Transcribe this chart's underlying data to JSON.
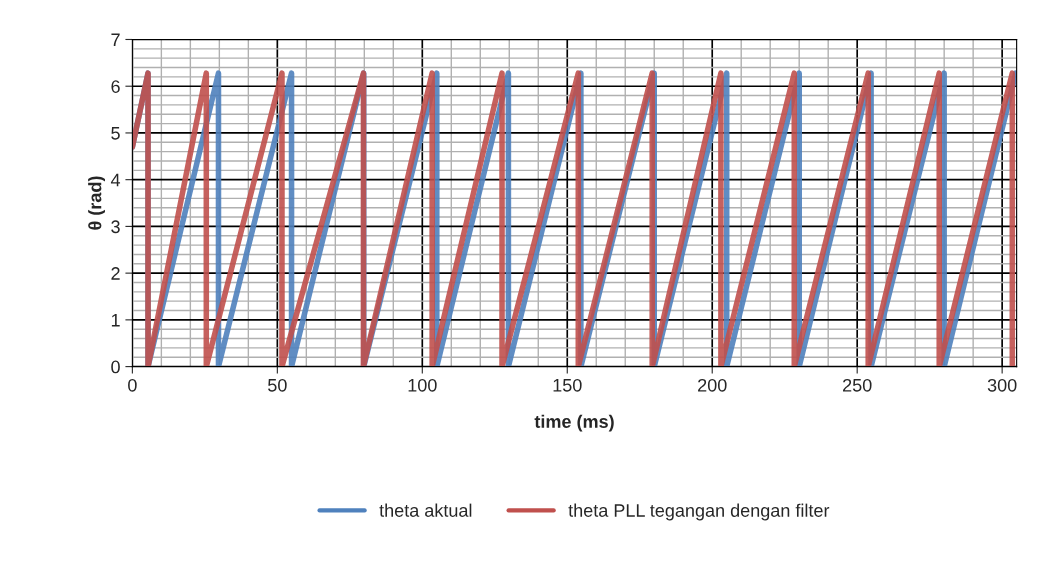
{
  "chart_data": {
    "type": "line",
    "xlabel": "time (ms)",
    "ylabel": "θ (rad)",
    "xlim": [
      0,
      305
    ],
    "xticks": [
      0,
      50,
      100,
      150,
      200,
      250,
      300
    ],
    "ylim": [
      0,
      7
    ],
    "yticks": [
      0,
      1,
      2,
      3,
      4,
      5,
      6,
      7
    ],
    "grid": true,
    "legend": "bottom",
    "marker": "none",
    "line_style": "solid",
    "series": [
      {
        "name": "theta aktual",
        "color": "#4f81bd",
        "x": [
          0,
          5.4,
          5.4,
          29.7,
          29.7,
          54.9,
          54.9,
          79.8,
          79.8,
          105,
          105,
          129.7,
          129.7,
          154.7,
          154.7,
          180,
          180,
          205,
          205,
          230,
          230,
          254.8,
          254.8,
          280,
          280,
          304.7
        ],
        "values": [
          4.7,
          6.28,
          0,
          6.28,
          0,
          6.28,
          0,
          6.28,
          0,
          6.28,
          0,
          6.28,
          0,
          6.28,
          0,
          6.28,
          0,
          6.28,
          0,
          6.28,
          0,
          6.28,
          0,
          6.28,
          0,
          6.28
        ]
      },
      {
        "name": "theta PLL tegangan dengan filter",
        "color": "#c0504d",
        "x": [
          0,
          5.4,
          5.4,
          25.5,
          25.5,
          51.6,
          51.6,
          79.7,
          79.7,
          103.4,
          103.4,
          127.5,
          127.5,
          153.8,
          153.8,
          179.3,
          179.3,
          203,
          203,
          228.3,
          228.3,
          253.8,
          253.8,
          278.3,
          278.3,
          303.5,
          303.5
        ],
        "values": [
          4.7,
          6.28,
          0,
          6.28,
          0,
          6.28,
          0,
          6.28,
          0,
          6.28,
          0,
          6.28,
          0,
          6.28,
          0,
          6.28,
          0,
          6.28,
          0,
          6.28,
          0,
          6.28,
          0,
          6.28,
          0,
          6.28,
          0
        ]
      }
    ]
  }
}
